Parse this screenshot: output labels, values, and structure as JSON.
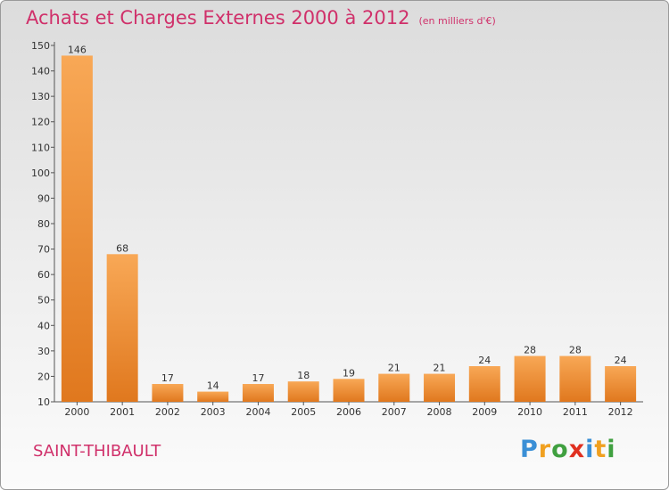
{
  "chart_data": {
    "type": "bar",
    "title": "Achats et Charges Externes 2000 à 2012",
    "subtitle": "(en milliers d'€)",
    "categories": [
      "2000",
      "2001",
      "2002",
      "2003",
      "2004",
      "2005",
      "2006",
      "2007",
      "2008",
      "2009",
      "2010",
      "2011",
      "2012"
    ],
    "values": [
      146,
      68,
      17,
      14,
      17,
      18,
      19,
      21,
      21,
      24,
      28,
      28,
      24
    ],
    "ylim": [
      10,
      150
    ],
    "yticks": [
      10,
      20,
      30,
      40,
      50,
      60,
      70,
      80,
      90,
      100,
      110,
      120,
      130,
      140,
      150
    ],
    "grid": false,
    "legend": "none",
    "colors": {
      "bar_light": "#f8a856",
      "bar_dark": "#e0781e",
      "title": "#d0306a"
    }
  },
  "footer": {
    "place": "SAINT-THIBAULT",
    "logo": [
      "P",
      "r",
      "o",
      "x",
      "i",
      "t",
      "i"
    ],
    "logo_colors": [
      "#3a8fd6",
      "#f0a020",
      "#40a040",
      "#e03020",
      "#3a8fd6",
      "#f0a020",
      "#40a040"
    ]
  }
}
